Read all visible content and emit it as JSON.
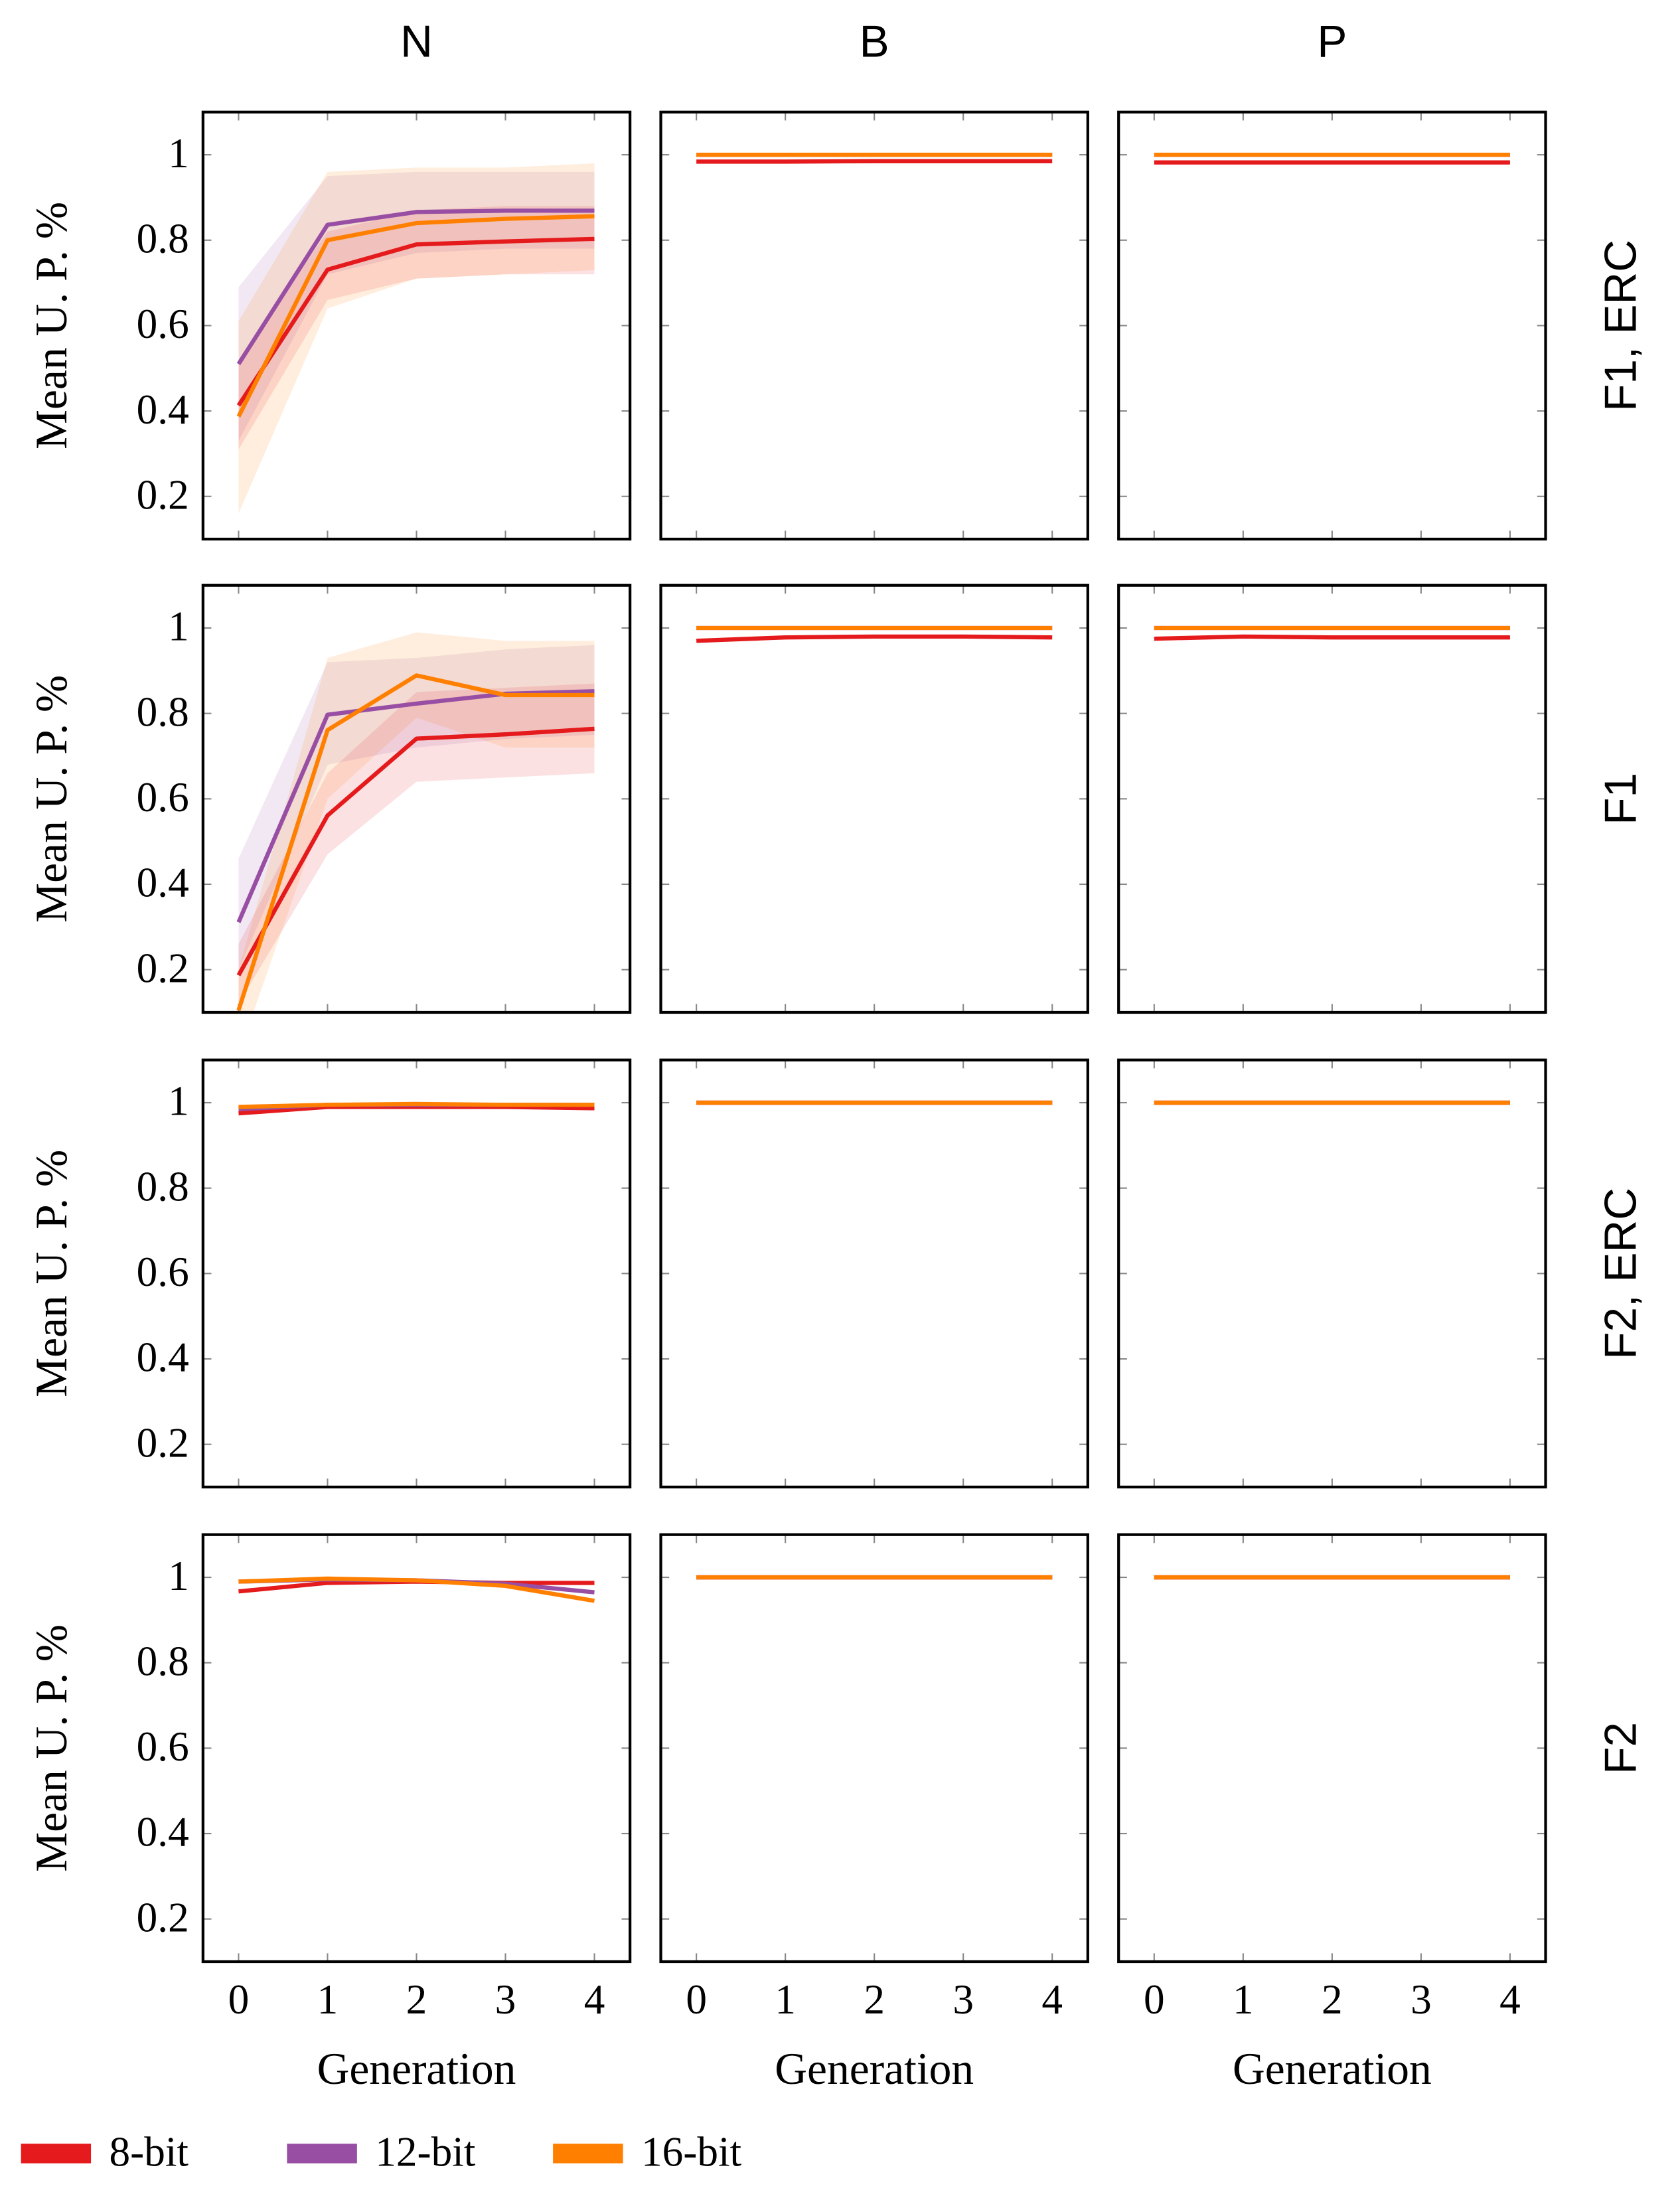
{
  "chart_data": [
    {
      "type": "line",
      "title": "N",
      "ylabel": "Mean U. P. %",
      "x": [
        0,
        1,
        2,
        3,
        4
      ],
      "xlim": [
        -0.4,
        4.4
      ],
      "xticks": [
        0,
        1,
        2,
        3,
        4
      ],
      "ylim": [
        0.1,
        1.1
      ],
      "yticks": [
        0.2,
        0.4,
        0.6,
        0.8,
        1
      ],
      "series": [
        {
          "name": "8-bit",
          "color": "#e41a1c",
          "values": [
            0.413,
            0.731,
            0.79,
            0.797,
            0.803
          ],
          "lower": [
            0.31,
            0.66,
            0.71,
            0.72,
            0.72
          ],
          "upper": [
            0.52,
            0.82,
            0.87,
            0.88,
            0.88
          ]
        },
        {
          "name": "12-bit",
          "color": "#984ea3",
          "values": [
            0.51,
            0.836,
            0.866,
            0.869,
            0.869
          ],
          "lower": [
            0.33,
            0.72,
            0.77,
            0.78,
            0.78
          ],
          "upper": [
            0.69,
            0.95,
            0.96,
            0.96,
            0.96
          ]
        },
        {
          "name": "16-bit",
          "color": "#ff7f00",
          "values": [
            0.387,
            0.8,
            0.84,
            0.85,
            0.856
          ],
          "lower": [
            0.16,
            0.64,
            0.71,
            0.72,
            0.73
          ],
          "upper": [
            0.61,
            0.96,
            0.97,
            0.97,
            0.98
          ]
        }
      ]
    },
    {
      "type": "line",
      "title": "B",
      "x": [
        0,
        1,
        2,
        3,
        4
      ],
      "xlim": [
        -0.4,
        4.4
      ],
      "xticks": [
        0,
        1,
        2,
        3,
        4
      ],
      "ylim": [
        0.1,
        1.1
      ],
      "yticks": [
        0.2,
        0.4,
        0.6,
        0.8,
        1
      ],
      "series": [
        {
          "name": "8-bit",
          "color": "#e41a1c",
          "values": [
            0.984,
            0.984,
            0.985,
            0.985,
            0.985
          ]
        },
        {
          "name": "12-bit",
          "color": "#984ea3",
          "values": [
            1,
            1,
            1,
            1,
            1
          ]
        },
        {
          "name": "16-bit",
          "color": "#ff7f00",
          "values": [
            1,
            1,
            1,
            1,
            1
          ]
        }
      ]
    },
    {
      "type": "line",
      "title": "P",
      "row_label": "F1, ERC",
      "x": [
        0,
        1,
        2,
        3,
        4
      ],
      "xlim": [
        -0.4,
        4.4
      ],
      "xticks": [
        0,
        1,
        2,
        3,
        4
      ],
      "ylim": [
        0.1,
        1.1
      ],
      "yticks": [
        0.2,
        0.4,
        0.6,
        0.8,
        1
      ],
      "series": [
        {
          "name": "8-bit",
          "color": "#e41a1c",
          "values": [
            0.982,
            0.982,
            0.982,
            0.982,
            0.982
          ]
        },
        {
          "name": "12-bit",
          "color": "#984ea3",
          "values": [
            1,
            1,
            1,
            1,
            1
          ]
        },
        {
          "name": "16-bit",
          "color": "#ff7f00",
          "values": [
            1,
            1,
            1,
            1,
            1
          ]
        }
      ]
    },
    {
      "type": "line",
      "ylabel": "Mean U. P. %",
      "x": [
        0,
        1,
        2,
        3,
        4
      ],
      "xlim": [
        -0.4,
        4.4
      ],
      "xticks": [
        0,
        1,
        2,
        3,
        4
      ],
      "ylim": [
        0.1,
        1.1
      ],
      "yticks": [
        0.2,
        0.4,
        0.6,
        0.8,
        1
      ],
      "series": [
        {
          "name": "8-bit",
          "color": "#e41a1c",
          "values": [
            0.187,
            0.561,
            0.741,
            0.751,
            0.764
          ],
          "lower": [
            0.12,
            0.47,
            0.64,
            0.65,
            0.66
          ],
          "upper": [
            0.26,
            0.66,
            0.85,
            0.86,
            0.87
          ]
        },
        {
          "name": "12-bit",
          "color": "#984ea3",
          "values": [
            0.311,
            0.797,
            0.823,
            0.846,
            0.852
          ],
          "lower": [
            0.2,
            0.68,
            0.72,
            0.74,
            0.75
          ],
          "upper": [
            0.46,
            0.92,
            0.93,
            0.95,
            0.96
          ]
        },
        {
          "name": "16-bit",
          "color": "#ff7f00",
          "values": [
            0.105,
            0.761,
            0.889,
            0.843,
            0.843
          ],
          "lower": [
            0,
            0.6,
            0.79,
            0.72,
            0.72
          ],
          "upper": [
            0.2,
            0.93,
            0.99,
            0.97,
            0.97
          ]
        }
      ]
    },
    {
      "type": "line",
      "x": [
        0,
        1,
        2,
        3,
        4
      ],
      "xlim": [
        -0.4,
        4.4
      ],
      "xticks": [
        0,
        1,
        2,
        3,
        4
      ],
      "ylim": [
        0.1,
        1.1
      ],
      "yticks": [
        0.2,
        0.4,
        0.6,
        0.8,
        1
      ],
      "series": [
        {
          "name": "8-bit",
          "color": "#e41a1c",
          "values": [
            0.97,
            0.978,
            0.98,
            0.98,
            0.978
          ]
        },
        {
          "name": "12-bit",
          "color": "#984ea3",
          "values": [
            1,
            1,
            1,
            1,
            1
          ]
        },
        {
          "name": "16-bit",
          "color": "#ff7f00",
          "values": [
            1,
            1,
            1,
            1,
            1
          ]
        }
      ]
    },
    {
      "type": "line",
      "row_label": "F1",
      "x": [
        0,
        1,
        2,
        3,
        4
      ],
      "xlim": [
        -0.4,
        4.4
      ],
      "xticks": [
        0,
        1,
        2,
        3,
        4
      ],
      "ylim": [
        0.1,
        1.1
      ],
      "yticks": [
        0.2,
        0.4,
        0.6,
        0.8,
        1
      ],
      "series": [
        {
          "name": "8-bit",
          "color": "#e41a1c",
          "values": [
            0.975,
            0.98,
            0.978,
            0.978,
            0.978
          ]
        },
        {
          "name": "12-bit",
          "color": "#984ea3",
          "values": [
            1,
            1,
            1,
            1,
            1
          ]
        },
        {
          "name": "16-bit",
          "color": "#ff7f00",
          "values": [
            1,
            1,
            1,
            1,
            1
          ]
        }
      ]
    },
    {
      "type": "line",
      "ylabel": "Mean U. P. %",
      "x": [
        0,
        1,
        2,
        3,
        4
      ],
      "xlim": [
        -0.4,
        4.4
      ],
      "xticks": [
        0,
        1,
        2,
        3,
        4
      ],
      "ylim": [
        0.1,
        1.1
      ],
      "yticks": [
        0.2,
        0.4,
        0.6,
        0.8,
        1
      ],
      "series": [
        {
          "name": "8-bit",
          "color": "#e41a1c",
          "values": [
            0.975,
            0.99,
            0.99,
            0.99,
            0.987
          ]
        },
        {
          "name": "12-bit",
          "color": "#984ea3",
          "values": [
            0.985,
            0.995,
            0.995,
            0.995,
            0.995
          ]
        },
        {
          "name": "16-bit",
          "color": "#ff7f00",
          "values": [
            0.99,
            0.995,
            0.997,
            0.995,
            0.995
          ]
        }
      ]
    },
    {
      "type": "line",
      "x": [
        0,
        1,
        2,
        3,
        4
      ],
      "xlim": [
        -0.4,
        4.4
      ],
      "xticks": [
        0,
        1,
        2,
        3,
        4
      ],
      "ylim": [
        0.1,
        1.1
      ],
      "yticks": [
        0.2,
        0.4,
        0.6,
        0.8,
        1
      ],
      "series": [
        {
          "name": "8-bit",
          "color": "#e41a1c",
          "values": [
            1,
            1,
            1,
            1,
            1
          ]
        },
        {
          "name": "12-bit",
          "color": "#984ea3",
          "values": [
            1,
            1,
            1,
            1,
            1
          ]
        },
        {
          "name": "16-bit",
          "color": "#ff7f00",
          "values": [
            1,
            1,
            1,
            1,
            1
          ]
        }
      ]
    },
    {
      "type": "line",
      "row_label": "F2, ERC",
      "x": [
        0,
        1,
        2,
        3,
        4
      ],
      "xlim": [
        -0.4,
        4.4
      ],
      "xticks": [
        0,
        1,
        2,
        3,
        4
      ],
      "ylim": [
        0.1,
        1.1
      ],
      "yticks": [
        0.2,
        0.4,
        0.6,
        0.8,
        1
      ],
      "series": [
        {
          "name": "8-bit",
          "color": "#e41a1c",
          "values": [
            1,
            1,
            1,
            1,
            1
          ]
        },
        {
          "name": "12-bit",
          "color": "#984ea3",
          "values": [
            1,
            1,
            1,
            1,
            1
          ]
        },
        {
          "name": "16-bit",
          "color": "#ff7f00",
          "values": [
            1,
            1,
            1,
            1,
            1
          ]
        }
      ]
    },
    {
      "type": "line",
      "ylabel": "Mean U. P. %",
      "xlabel": "Generation",
      "x": [
        0,
        1,
        2,
        3,
        4
      ],
      "xlim": [
        -0.4,
        4.4
      ],
      "xticks": [
        0,
        1,
        2,
        3,
        4
      ],
      "ylim": [
        0.1,
        1.1
      ],
      "yticks": [
        0.2,
        0.4,
        0.6,
        0.8,
        1
      ],
      "series": [
        {
          "name": "8-bit",
          "color": "#e41a1c",
          "values": [
            0.967,
            0.987,
            0.99,
            0.987,
            0.987
          ]
        },
        {
          "name": "12-bit",
          "color": "#984ea3",
          "values": [
            0.99,
            0.995,
            0.993,
            0.985,
            0.965
          ]
        },
        {
          "name": "16-bit",
          "color": "#ff7f00",
          "values": [
            0.99,
            0.997,
            0.993,
            0.98,
            0.945
          ]
        }
      ]
    },
    {
      "type": "line",
      "xlabel": "Generation",
      "x": [
        0,
        1,
        2,
        3,
        4
      ],
      "xlim": [
        -0.4,
        4.4
      ],
      "xticks": [
        0,
        1,
        2,
        3,
        4
      ],
      "ylim": [
        0.1,
        1.1
      ],
      "yticks": [
        0.2,
        0.4,
        0.6,
        0.8,
        1
      ],
      "series": [
        {
          "name": "8-bit",
          "color": "#e41a1c",
          "values": [
            1,
            1,
            1,
            1,
            1
          ]
        },
        {
          "name": "12-bit",
          "color": "#984ea3",
          "values": [
            1,
            1,
            1,
            1,
            1
          ]
        },
        {
          "name": "16-bit",
          "color": "#ff7f00",
          "values": [
            1,
            1,
            1,
            1,
            1
          ]
        }
      ]
    },
    {
      "type": "line",
      "row_label": "F2",
      "xlabel": "Generation",
      "x": [
        0,
        1,
        2,
        3,
        4
      ],
      "xlim": [
        -0.4,
        4.4
      ],
      "xticks": [
        0,
        1,
        2,
        3,
        4
      ],
      "ylim": [
        0.1,
        1.1
      ],
      "yticks": [
        0.2,
        0.4,
        0.6,
        0.8,
        1
      ],
      "series": [
        {
          "name": "8-bit",
          "color": "#e41a1c",
          "values": [
            1,
            1,
            1,
            1,
            1
          ]
        },
        {
          "name": "12-bit",
          "color": "#984ea3",
          "values": [
            1,
            1,
            1,
            1,
            1
          ]
        },
        {
          "name": "16-bit",
          "color": "#ff7f00",
          "values": [
            1,
            1,
            1,
            1,
            1
          ]
        }
      ]
    }
  ]
}
